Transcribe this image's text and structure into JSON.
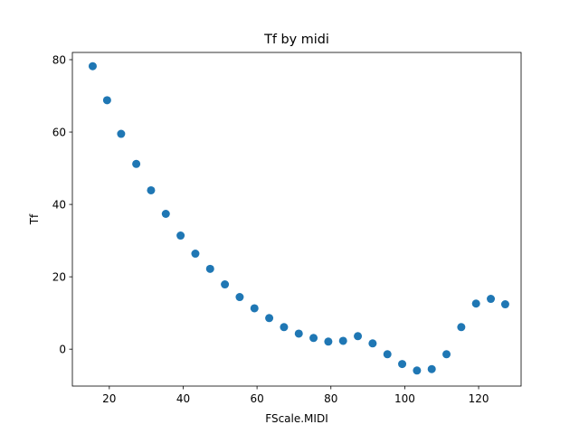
{
  "chart_data": {
    "type": "scatter",
    "title": "Tf by midi",
    "xlabel": "FScale.MIDI",
    "ylabel": "Tf",
    "xlim": [
      10,
      131.5
    ],
    "ylim": [
      -10.2,
      82
    ],
    "xticks": [
      20,
      40,
      60,
      80,
      100,
      120
    ],
    "yticks": [
      0,
      20,
      40,
      60,
      80
    ],
    "xtick_labels": [
      "20",
      "40",
      "60",
      "80",
      "100",
      "120"
    ],
    "ytick_labels": [
      "0",
      "20",
      "40",
      "60",
      "80"
    ],
    "grid": false,
    "marker_color": "#1f77b4",
    "x": [
      15.5,
      19.4,
      23.2,
      27.3,
      31.3,
      35.3,
      39.3,
      43.3,
      47.3,
      51.3,
      55.3,
      59.3,
      63.3,
      67.3,
      71.3,
      75.3,
      79.3,
      83.3,
      87.3,
      91.3,
      95.3,
      99.3,
      103.3,
      107.3,
      111.3,
      115.3,
      119.3,
      123.3,
      127.2
    ],
    "y": [
      78.2,
      68.8,
      59.5,
      51.2,
      43.9,
      37.4,
      31.4,
      26.4,
      22.2,
      17.9,
      14.4,
      11.3,
      8.6,
      6.1,
      4.3,
      3.1,
      2.1,
      2.3,
      3.6,
      1.6,
      -1.4,
      -4.1,
      -5.9,
      -5.5,
      -1.4,
      6.1,
      12.6,
      13.9,
      12.4
    ]
  }
}
